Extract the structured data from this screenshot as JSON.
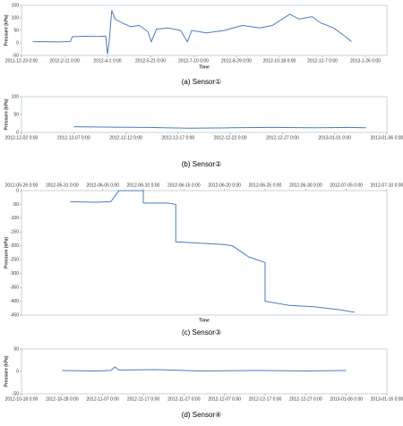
{
  "chart_data": [
    {
      "type": "line",
      "caption": "(a)  Sensor①",
      "ylabel": "Pressure (kPa)",
      "xlabel": "Time",
      "xaxis_position": "bottom",
      "x": [
        "2012-01-05",
        "2012-01-20",
        "2012-02-05",
        "2012-02-18",
        "2012-02-20",
        "2012-03-05",
        "2012-03-20",
        "2012-03-30",
        "2012-04-01",
        "2012-04-03",
        "2012-04-06",
        "2012-04-10",
        "2012-04-18",
        "2012-04-28",
        "2012-05-08",
        "2012-05-18",
        "2012-05-22",
        "2012-05-28",
        "2012-06-10",
        "2012-06-25",
        "2012-07-03",
        "2012-07-08",
        "2012-07-25",
        "2012-08-15",
        "2012-09-05",
        "2012-09-25",
        "2012-10-10",
        "2012-10-30",
        "2012-11-10",
        "2012-11-25",
        "2012-12-05",
        "2012-12-20",
        "2013-01-01",
        "2013-01-10"
      ],
      "series": [
        {
          "color": "#4a7ebb",
          "values": [
            5,
            5,
            4,
            6,
            25,
            27,
            26,
            27,
            -45,
            5,
            130,
            95,
            80,
            65,
            70,
            45,
            5,
            55,
            60,
            50,
            5,
            50,
            40,
            50,
            70,
            60,
            70,
            115,
            95,
            105,
            80,
            60,
            30,
            5
          ]
        }
      ],
      "xlim": [
        "2011-12-23",
        "2013-02-20"
      ],
      "xticks": [
        {
          "value": "2011-12-23",
          "label": "2011-12-23 0:00"
        },
        {
          "value": "2012-02-11",
          "label": "2012-2-11 0:00"
        },
        {
          "value": "2012-04-01",
          "label": "2012-4-1 0:00"
        },
        {
          "value": "2012-05-21",
          "label": "2012-5-21 0:00"
        },
        {
          "value": "2012-07-10",
          "label": "2012-7-10 0:00"
        },
        {
          "value": "2012-08-29",
          "label": "2012-8-29 0:00"
        },
        {
          "value": "2012-10-18",
          "label": "2012-10-18 0:00"
        },
        {
          "value": "2012-12-07",
          "label": "2012-12-7 0:00"
        },
        {
          "value": "2013-01-26",
          "label": "2013-1-26 0:00"
        }
      ],
      "ylim": [
        -50,
        150
      ],
      "yticks": [
        -50,
        0,
        50,
        100,
        150
      ]
    },
    {
      "type": "line",
      "caption": "(b)  Sensor②",
      "ylabel": "Pressure (kPa)",
      "xaxis_position": "bottom",
      "x": [
        "2012-12-07",
        "2012-12-10",
        "2012-12-14",
        "2012-12-18",
        "2012-12-22",
        "2012-12-26",
        "2012-12-30",
        "2013-01-02",
        "2013-01-04"
      ],
      "series": [
        {
          "color": "#4a7ebb",
          "values": [
            16,
            15,
            14,
            12,
            13,
            14,
            13,
            14,
            13
          ]
        }
      ],
      "xlim": [
        "2012-12-02",
        "2013-01-06"
      ],
      "xticks": [
        {
          "value": "2012-12-02",
          "label": "2012-12-02  0:00"
        },
        {
          "value": "2012-12-07",
          "label": "2012-12-07  0:00"
        },
        {
          "value": "2012-12-12",
          "label": "2012-12-12  0:00"
        },
        {
          "value": "2012-12-17",
          "label": "2012-12-17  0:00"
        },
        {
          "value": "2012-12-22",
          "label": "2012-12-22  0:00"
        },
        {
          "value": "2012-12-27",
          "label": "2012-12-27  0:00"
        },
        {
          "value": "2013-01-01",
          "label": "2013-01-01  0:00"
        },
        {
          "value": "2013-01-06",
          "label": "2013-01-06  0:00"
        }
      ],
      "ylim": [
        0,
        100
      ],
      "yticks": [
        0,
        50,
        100
      ]
    },
    {
      "type": "line",
      "caption": "(c)  Sensor③",
      "ylabel": "Pressure (kPa)",
      "xlabel": "Time",
      "xaxis_position": "top",
      "x": [
        "2012-06-01",
        "2012-06-04",
        "2012-06-06",
        "2012-06-07",
        "2012-06-10",
        "2012-06-10",
        "2012-06-13",
        "2012-06-14",
        "2012-06-14",
        "2012-06-17",
        "2012-06-20",
        "2012-06-21",
        "2012-06-22",
        "2012-06-23",
        "2012-06-24",
        "2012-06-25",
        "2012-06-25",
        "2012-06-28",
        "2012-07-01",
        "2012-07-04",
        "2012-07-06"
      ],
      "series": [
        {
          "color": "#4a7ebb",
          "values": [
            -40,
            -42,
            -40,
            0,
            0,
            -45,
            -45,
            -50,
            -185,
            -190,
            -195,
            -200,
            -220,
            -240,
            -250,
            -260,
            -400,
            -415,
            -420,
            -430,
            -440
          ]
        }
      ],
      "xlim": [
        "2012-05-26",
        "2012-07-10"
      ],
      "xticks": [
        {
          "value": "2012-05-26",
          "label": "2012-05-26 0:00"
        },
        {
          "value": "2012-05-31",
          "label": "2012-05-31 0:00"
        },
        {
          "value": "2012-06-05",
          "label": "2012-06-05 0:00"
        },
        {
          "value": "2012-06-10",
          "label": "2012-06-10 0:00"
        },
        {
          "value": "2012-06-15",
          "label": "2012-06-15 0:00"
        },
        {
          "value": "2012-06-20",
          "label": "2012-06-20 0:00"
        },
        {
          "value": "2012-06-25",
          "label": "2012-06-25 0:00"
        },
        {
          "value": "2012-06-30",
          "label": "2012-06-30 0:00"
        },
        {
          "value": "2012-07-05",
          "label": "2012-07-05 0:00"
        },
        {
          "value": "2012-07-10",
          "label": "2012-07-10 0:00"
        }
      ],
      "ylim": [
        -450,
        0
      ],
      "yticks": [
        -450,
        -400,
        -350,
        -300,
        -250,
        -200,
        -150,
        -100,
        -50,
        0
      ]
    },
    {
      "type": "line",
      "caption": "(d)  Sensor④",
      "ylabel": "Pressure (kPa)",
      "xaxis_position": "bottom",
      "x": [
        "2012-10-28",
        "2012-11-05",
        "2012-11-09",
        "2012-11-10",
        "2012-11-11",
        "2012-11-20",
        "2012-12-01",
        "2012-12-15",
        "2012-12-28",
        "2013-01-06"
      ],
      "series": [
        {
          "color": "#4a7ebb",
          "values": [
            2,
            1,
            2,
            10,
            3,
            4,
            1,
            2,
            1,
            2
          ]
        }
      ],
      "xlim": [
        "2012-10-18",
        "2013-01-16"
      ],
      "xticks": [
        {
          "value": "2012-10-18",
          "label": "2012-10-18 0:00"
        },
        {
          "value": "2012-10-28",
          "label": "2012-10-28 0:00"
        },
        {
          "value": "2012-11-07",
          "label": "2012-11-07 0:00"
        },
        {
          "value": "2012-11-17",
          "label": "2012-11-17 0:00"
        },
        {
          "value": "2012-11-27",
          "label": "2012-11-27 0:00"
        },
        {
          "value": "2012-12-07",
          "label": "2012-12-07 0:00"
        },
        {
          "value": "2012-12-17",
          "label": "2012-12-17 0:00"
        },
        {
          "value": "2012-12-27",
          "label": "2012-12-27 0:00"
        },
        {
          "value": "2013-01-06",
          "label": "2013-01-06 0:00"
        },
        {
          "value": "2013-01-16",
          "label": "2013-01-16 0:00"
        }
      ],
      "ylim": [
        -50,
        50
      ],
      "yticks": [
        -50,
        0,
        50
      ]
    }
  ]
}
